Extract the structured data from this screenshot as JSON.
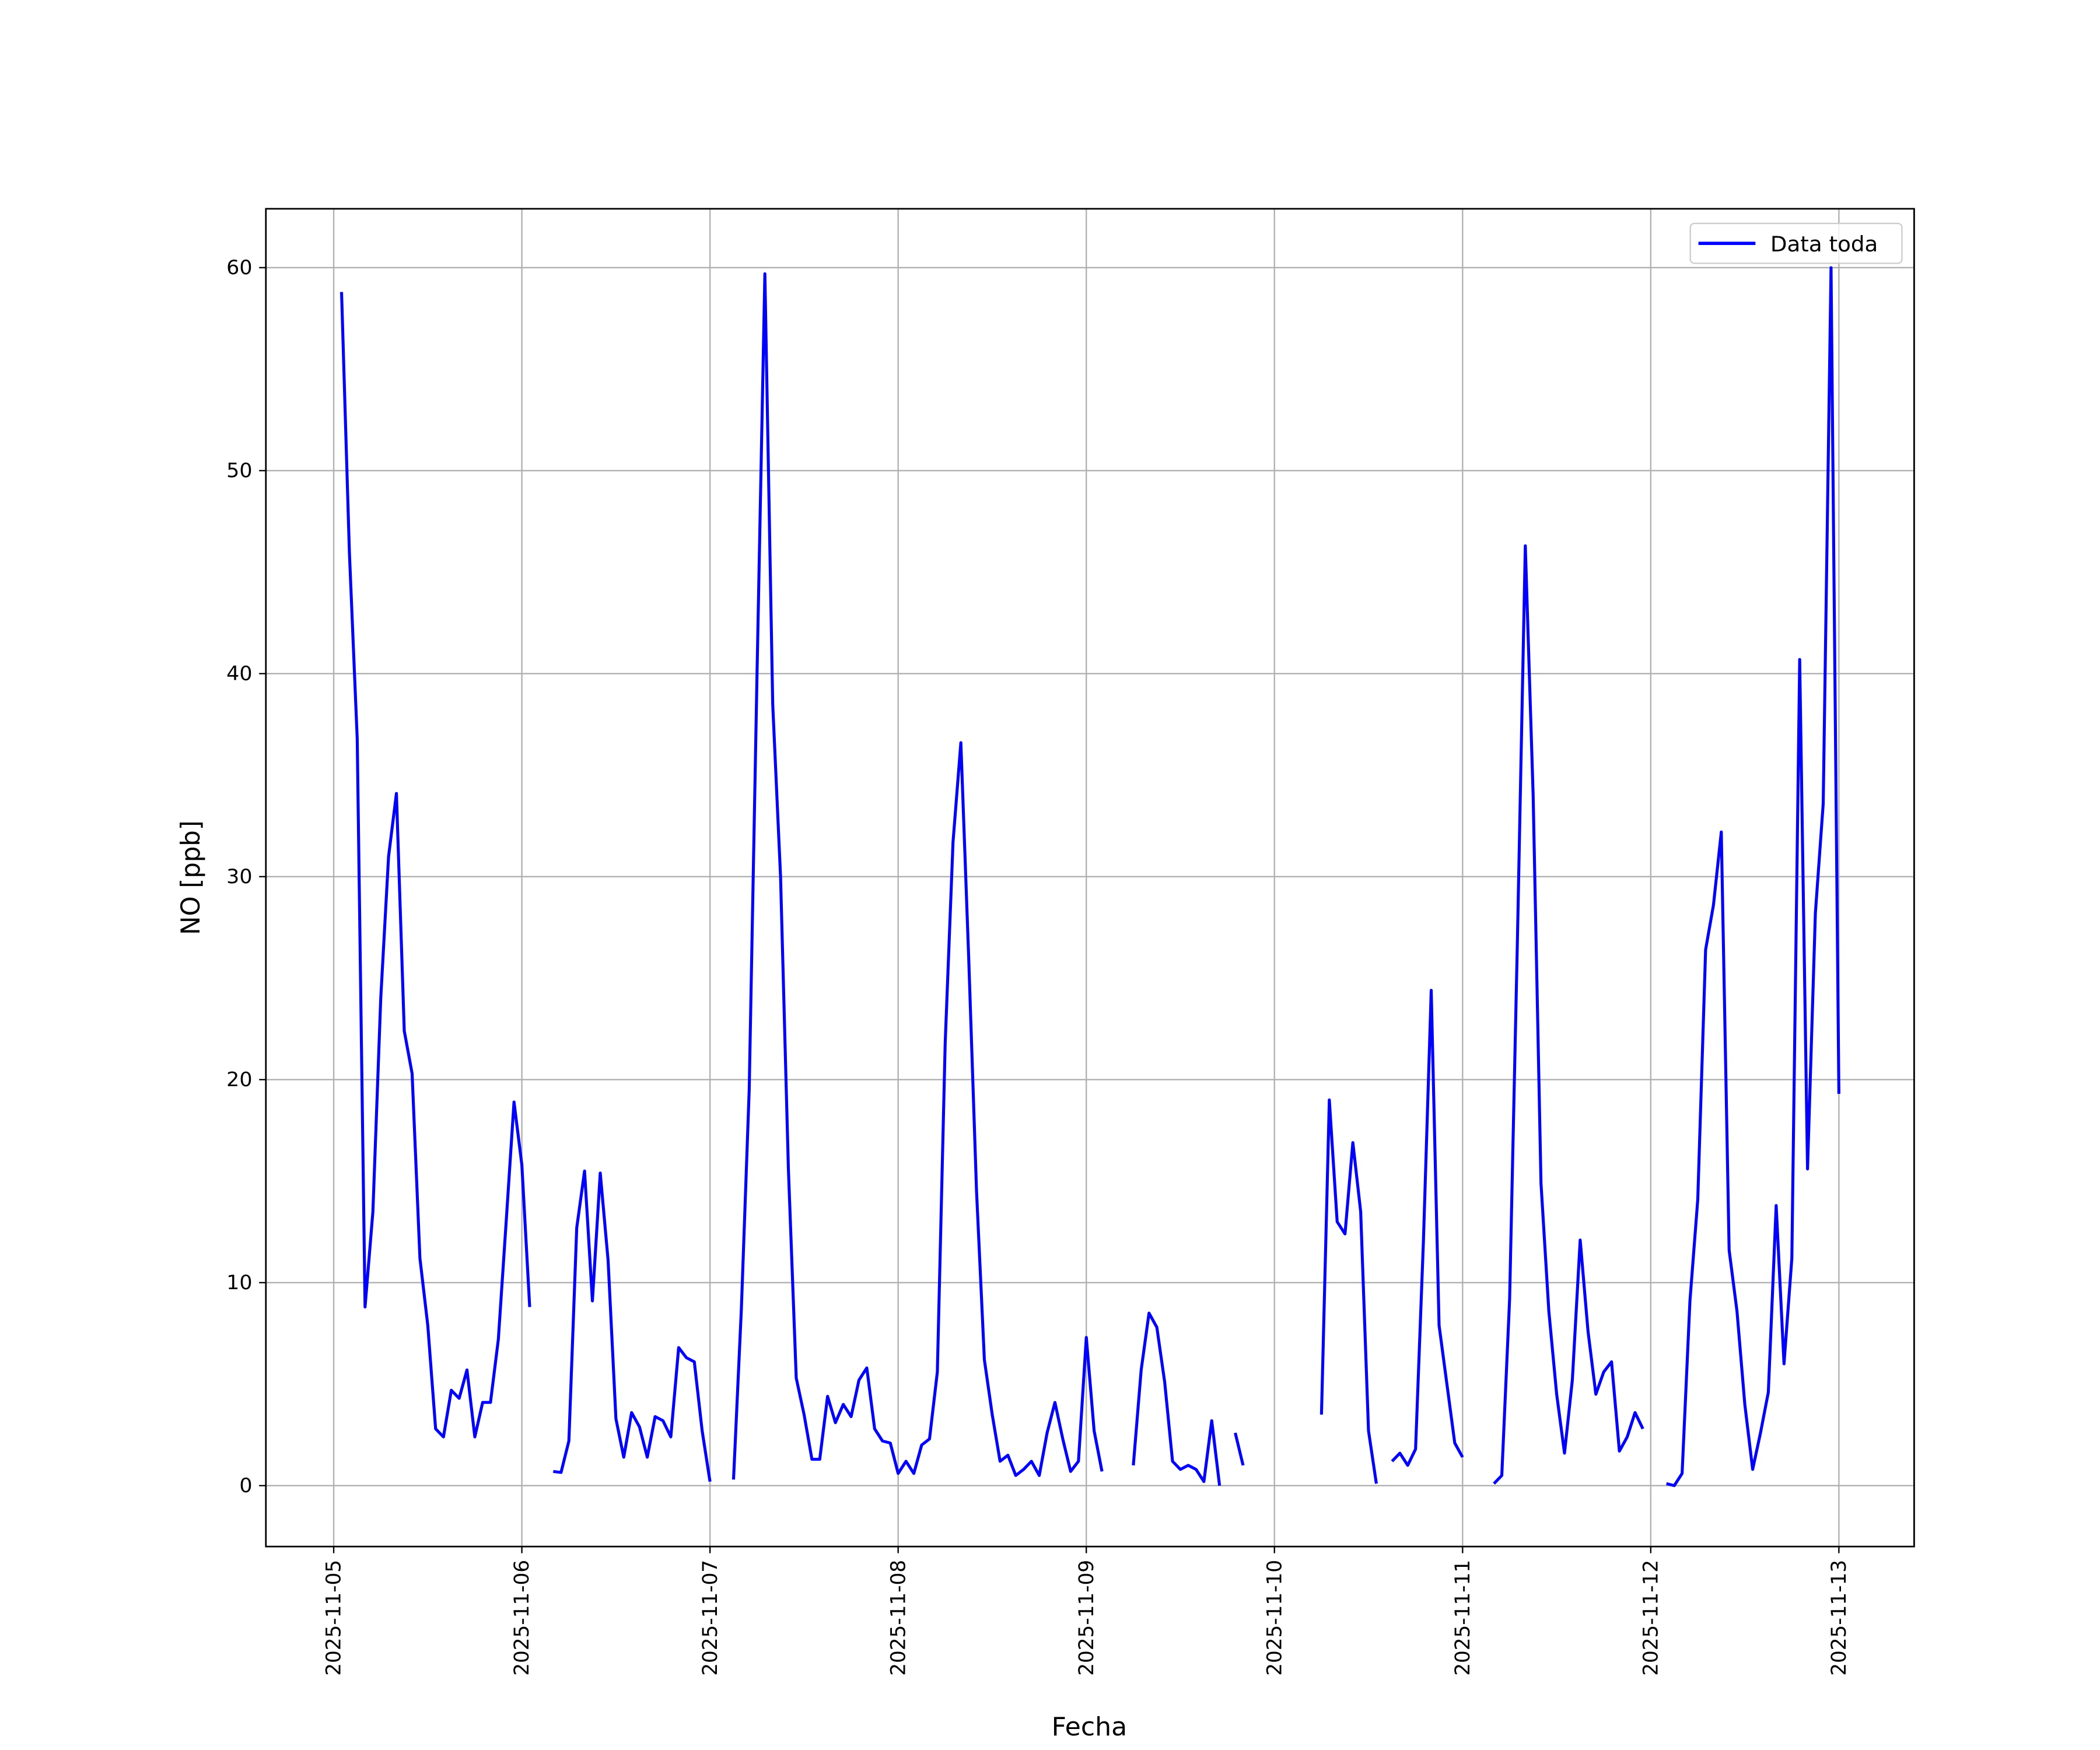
{
  "chart_data": {
    "type": "line",
    "xlabel": "Fecha",
    "ylabel": "NO [ppb]",
    "x": [
      1,
      2,
      3,
      4,
      5,
      6,
      7,
      8,
      9,
      10,
      11,
      12,
      13,
      14,
      15,
      16,
      17,
      18,
      19,
      20,
      21,
      22,
      23,
      24,
      25,
      26,
      27,
      28,
      29,
      30,
      31,
      32,
      33,
      34,
      35,
      36,
      37,
      38,
      39,
      40,
      41,
      42,
      43,
      44,
      45,
      46,
      47,
      48,
      49,
      50,
      51,
      52,
      53,
      54,
      55,
      56,
      57,
      58,
      59,
      60,
      61,
      62,
      63,
      64,
      65,
      66,
      67,
      68,
      69,
      70,
      71,
      72,
      73,
      74,
      75,
      76,
      77,
      78,
      79,
      80,
      81,
      82,
      83,
      84,
      85,
      86,
      87,
      88,
      89,
      90,
      91,
      92,
      93,
      94,
      95,
      96,
      97,
      98,
      99,
      100,
      101,
      102,
      103,
      104,
      105,
      106,
      107,
      108,
      109,
      110,
      111,
      112,
      113,
      114,
      115,
      116,
      117,
      118,
      119,
      120,
      121,
      122,
      123,
      124,
      125,
      126,
      127,
      128,
      129,
      130,
      131,
      132,
      133,
      134,
      135,
      136,
      137,
      138,
      139,
      140,
      141,
      142,
      143,
      144,
      145,
      146,
      147,
      148,
      149,
      150,
      151,
      152,
      153,
      154,
      155,
      156,
      157,
      158,
      159,
      160,
      161,
      162,
      163,
      164,
      165,
      166,
      167,
      168,
      169,
      170,
      171,
      172,
      173,
      174,
      175,
      176,
      177,
      178,
      179,
      180,
      181,
      182,
      183,
      184,
      185,
      186,
      187,
      188,
      189,
      190,
      191,
      192
    ],
    "series": [
      {
        "name": "Data toda",
        "color": "#0000ff",
        "values": [
          58.8,
          46,
          36.8,
          8.8,
          13.5,
          24,
          31,
          34.1,
          22.4,
          20.3,
          11.2,
          7.9,
          2.8,
          2.4,
          4.7,
          4.3,
          5.7,
          2.4,
          4.1,
          4.1,
          7.2,
          13,
          18.9,
          15.8,
          8.8,
          null,
          null,
          0.7,
          0.65,
          2.2,
          12.7,
          15.5,
          9.1,
          15.4,
          11.1,
          3.3,
          1.4,
          3.6,
          2.9,
          1.4,
          3.4,
          3.2,
          2.4,
          6.8,
          6.3,
          6.1,
          2.7,
          0.2,
          null,
          null,
          0.3,
          8.7,
          19.5,
          40,
          59.7,
          38.5,
          30,
          15.6,
          5.3,
          3.5,
          1.3,
          1.3,
          4.4,
          3.1,
          4,
          3.4,
          5.2,
          5.8,
          2.8,
          2.2,
          2.1,
          0.6,
          1.2,
          0.6,
          2,
          2.3,
          5.6,
          21.8,
          31.7,
          36.6,
          26,
          14.5,
          6.2,
          3.5,
          1.2,
          1.5,
          0.5,
          0.8,
          1.2,
          0.5,
          2.6,
          4.1,
          2.3,
          0.7,
          1.2,
          7.3,
          2.7,
          0.7,
          null,
          null,
          null,
          1.0,
          5.7,
          8.5,
          7.8,
          5.1,
          1.2,
          0.8,
          1.0,
          0.8,
          0.2,
          3.2,
          0,
          null,
          2.6,
          1.0,
          null,
          null,
          null,
          null,
          null,
          null,
          null,
          null,
          null,
          3.5,
          19,
          13,
          12.4,
          16.9,
          13.5,
          2.7,
          0.1,
          null,
          1.2,
          1.6,
          1.0,
          1.8,
          12,
          24.4,
          7.9,
          5,
          2.1,
          1.4,
          null,
          null,
          null,
          0.1,
          0.5,
          9.2,
          27,
          46.3,
          34,
          14.9,
          8.6,
          4.5,
          1.6,
          5.2,
          12.1,
          7.6,
          4.5,
          5.6,
          6.1,
          1.7,
          2.4,
          3.6,
          2.8,
          null,
          null,
          0.1,
          0,
          0.6,
          9.1,
          14.1,
          26.4,
          28.6,
          32.2,
          11.6,
          8.6,
          4,
          0.8,
          2.6,
          4.6,
          13.8,
          6,
          11.2,
          40.7,
          15.6,
          28.2,
          33.6,
          60,
          19.3
        ]
      }
    ],
    "xlim": [
      -8.65,
      201.6
    ],
    "ylim": [
      -3.0,
      62.9
    ],
    "xticks": [
      {
        "value": 0,
        "label": "2025-11-05"
      },
      {
        "value": 24,
        "label": "2025-11-06"
      },
      {
        "value": 48,
        "label": "2025-11-07"
      },
      {
        "value": 72,
        "label": "2025-11-08"
      },
      {
        "value": 96,
        "label": "2025-11-09"
      },
      {
        "value": 120,
        "label": "2025-11-10"
      },
      {
        "value": 144,
        "label": "2025-11-11"
      },
      {
        "value": 168,
        "label": "2025-11-12"
      },
      {
        "value": 192,
        "label": "2025-11-13"
      }
    ],
    "yticks": [
      0,
      10,
      20,
      30,
      40,
      50,
      60
    ],
    "grid": true,
    "legend": "upper right"
  }
}
